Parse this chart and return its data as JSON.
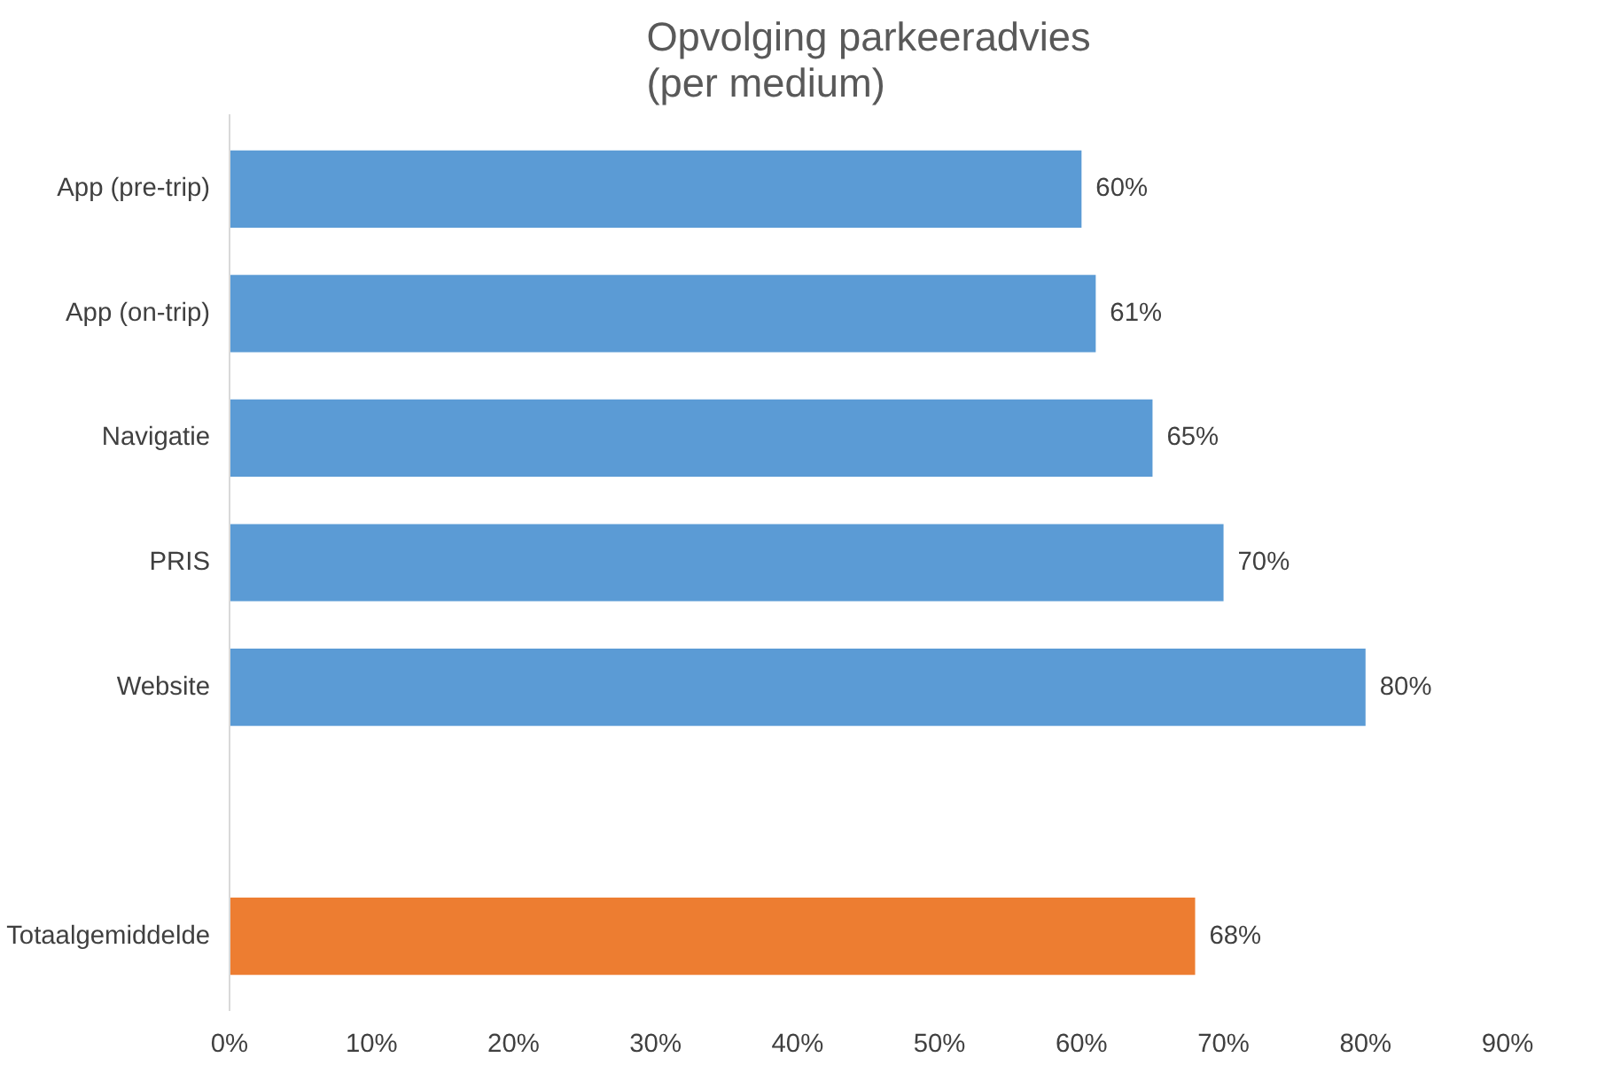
{
  "chart_data": {
    "type": "bar",
    "orientation": "horizontal",
    "title": "Opvolging parkeeradvies\n(per medium)",
    "categories": [
      "App (pre-trip)",
      "App (on-trip)",
      "Navigatie",
      "PRIS",
      "Website",
      null,
      "Totaalgemiddelde"
    ],
    "values": [
      60,
      61,
      65,
      70,
      80,
      null,
      68
    ],
    "colors": [
      "#5b9bd5",
      "#5b9bd5",
      "#5b9bd5",
      "#5b9bd5",
      "#5b9bd5",
      "#5b9bd5",
      "#ed7d31"
    ],
    "value_labels": [
      "60%",
      "61%",
      "65%",
      "70%",
      "80%",
      null,
      "68%"
    ],
    "xlim": [
      0,
      90
    ],
    "xticks": [
      {
        "value": 0,
        "label": "0%"
      },
      {
        "value": 10,
        "label": "10%"
      },
      {
        "value": 20,
        "label": "20%"
      },
      {
        "value": 30,
        "label": "30%"
      },
      {
        "value": 40,
        "label": "40%"
      },
      {
        "value": 50,
        "label": "50%"
      },
      {
        "value": 60,
        "label": "60%"
      },
      {
        "value": 70,
        "label": "70%"
      },
      {
        "value": 80,
        "label": "80%"
      },
      {
        "value": 90,
        "label": "90%"
      }
    ],
    "grid": false
  }
}
